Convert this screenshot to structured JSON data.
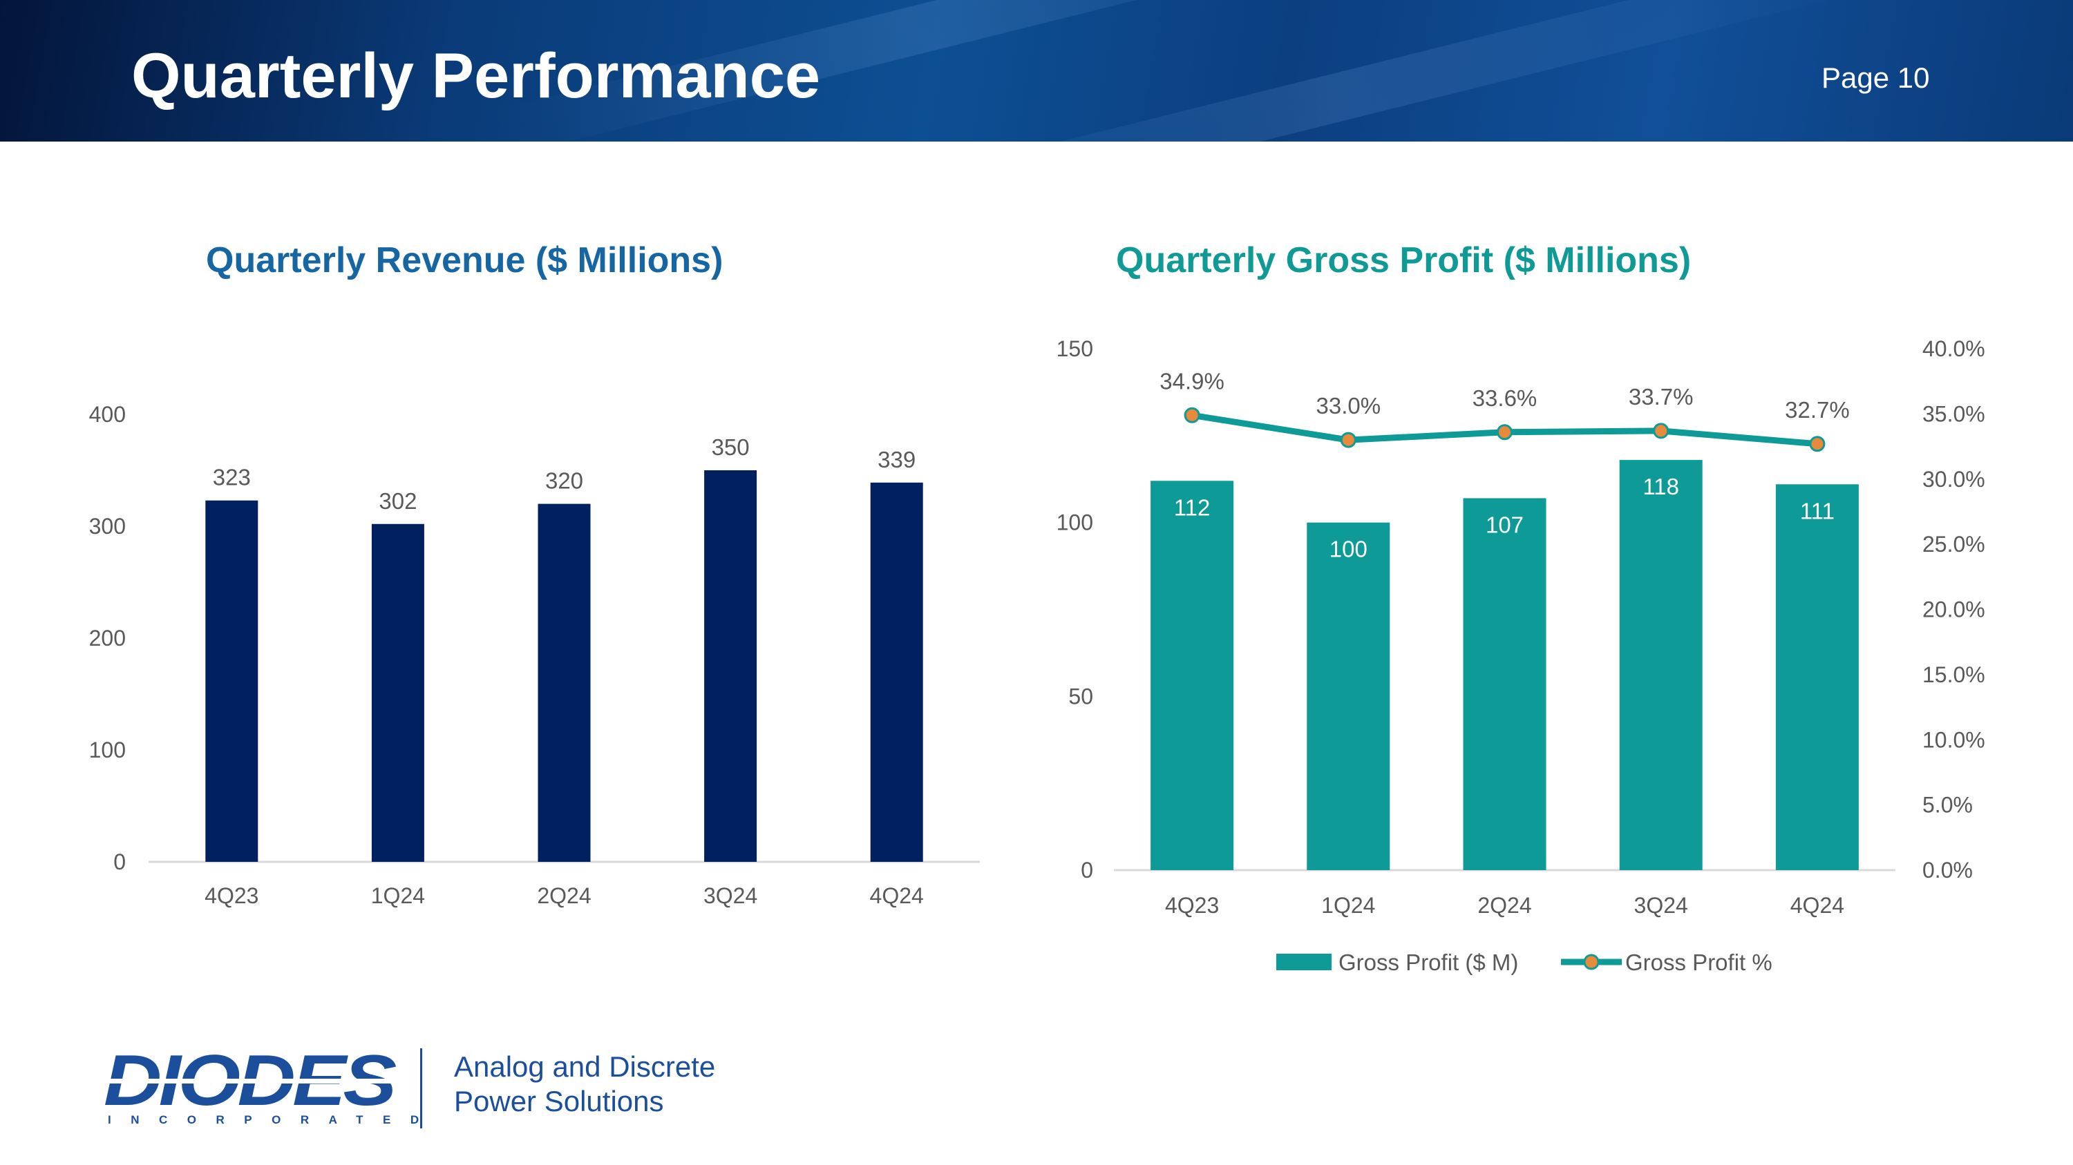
{
  "header": {
    "title": "Quarterly Performance",
    "page_label": "Page 10"
  },
  "colors": {
    "revenue_bar": "#00205f",
    "gross_profit_bar": "#0e9a97",
    "gross_margin_line": "#0e9a97",
    "gross_margin_marker": "#e88a3c",
    "revenue_title": "#1666a4",
    "gp_title": "#109a96"
  },
  "chart_data": [
    {
      "type": "bar",
      "title": "Quarterly Revenue ($ Millions)",
      "categories": [
        "4Q23",
        "1Q24",
        "2Q24",
        "3Q24",
        "4Q24"
      ],
      "values": [
        323,
        302,
        320,
        350,
        339
      ],
      "value_labels": [
        "323",
        "302",
        "320",
        "350",
        "339"
      ],
      "ylim": [
        0,
        400
      ],
      "yticks": [
        0,
        100,
        200,
        300,
        400
      ],
      "ytick_labels": [
        "0",
        "100",
        "200",
        "300",
        "400"
      ],
      "xlabel": "",
      "ylabel": ""
    },
    {
      "type": "bar",
      "title": "Quarterly Gross Profit ($ Millions)",
      "categories": [
        "4Q23",
        "1Q24",
        "2Q24",
        "3Q24",
        "4Q24"
      ],
      "series": [
        {
          "name": "Gross Profit ($ M)",
          "type": "bar",
          "axis": "left",
          "values": [
            112,
            100,
            107,
            118,
            111
          ],
          "value_labels": [
            "112",
            "100",
            "107",
            "118",
            "111"
          ]
        },
        {
          "name": "Gross Profit %",
          "type": "line",
          "axis": "right",
          "values": [
            34.9,
            33.0,
            33.6,
            33.7,
            32.7
          ],
          "value_labels": [
            "34.9%",
            "33.0%",
            "33.6%",
            "33.7%",
            "32.7%"
          ]
        }
      ],
      "ylim": [
        0,
        150
      ],
      "yticks": [
        0,
        50,
        100,
        150
      ],
      "ytick_labels": [
        "0",
        "50",
        "100",
        "150"
      ],
      "y2lim": [
        0,
        40
      ],
      "y2ticks": [
        0,
        5,
        10,
        15,
        20,
        25,
        30,
        35,
        40
      ],
      "y2tick_labels": [
        "0.0%",
        "5.0%",
        "10.0%",
        "15.0%",
        "20.0%",
        "25.0%",
        "30.0%",
        "35.0%",
        "40.0%"
      ],
      "legend": "bottom-center"
    }
  ],
  "footer": {
    "logo_text": "DIODES",
    "logo_subtext": "INCORPORATED",
    "tagline_line1": "Analog and Discrete",
    "tagline_line2": "Power Solutions"
  }
}
